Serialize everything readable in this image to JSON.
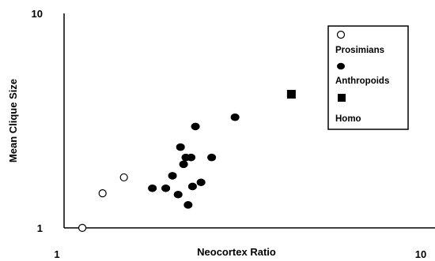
{
  "chart_data": {
    "type": "scatter",
    "title": "",
    "xlabel": "Neocortex Ratio",
    "ylabel": "Mean Clique Size",
    "x_scale": "log",
    "y_scale": "log",
    "xlim": [
      1,
      10
    ],
    "ylim": [
      1,
      10
    ],
    "x_tick_labels": [
      "1",
      "10"
    ],
    "y_tick_labels": [
      "1",
      "10"
    ],
    "grid": false,
    "legend_position": "top-right",
    "series": [
      {
        "name": "Prosimians",
        "marker": "hollow-circle",
        "color": "#000000",
        "points": [
          [
            1.12,
            1.0
          ],
          [
            1.27,
            1.45
          ],
          [
            1.45,
            1.72
          ]
        ]
      },
      {
        "name": "Anthropoids",
        "marker": "filled-circle",
        "color": "#000000",
        "points": [
          [
            1.73,
            1.53
          ],
          [
            1.88,
            1.53
          ],
          [
            1.96,
            1.75
          ],
          [
            2.03,
            1.43
          ],
          [
            2.06,
            2.38
          ],
          [
            2.13,
            2.13
          ],
          [
            2.1,
            1.98
          ],
          [
            2.16,
            1.28
          ],
          [
            2.2,
            2.13
          ],
          [
            2.22,
            1.56
          ],
          [
            2.26,
            2.97
          ],
          [
            2.34,
            1.63
          ],
          [
            2.5,
            2.13
          ],
          [
            2.89,
            3.28
          ]
        ]
      },
      {
        "name": "Homo",
        "marker": "filled-square",
        "color": "#000000",
        "points": [
          [
            4.1,
            4.2
          ]
        ]
      }
    ]
  }
}
